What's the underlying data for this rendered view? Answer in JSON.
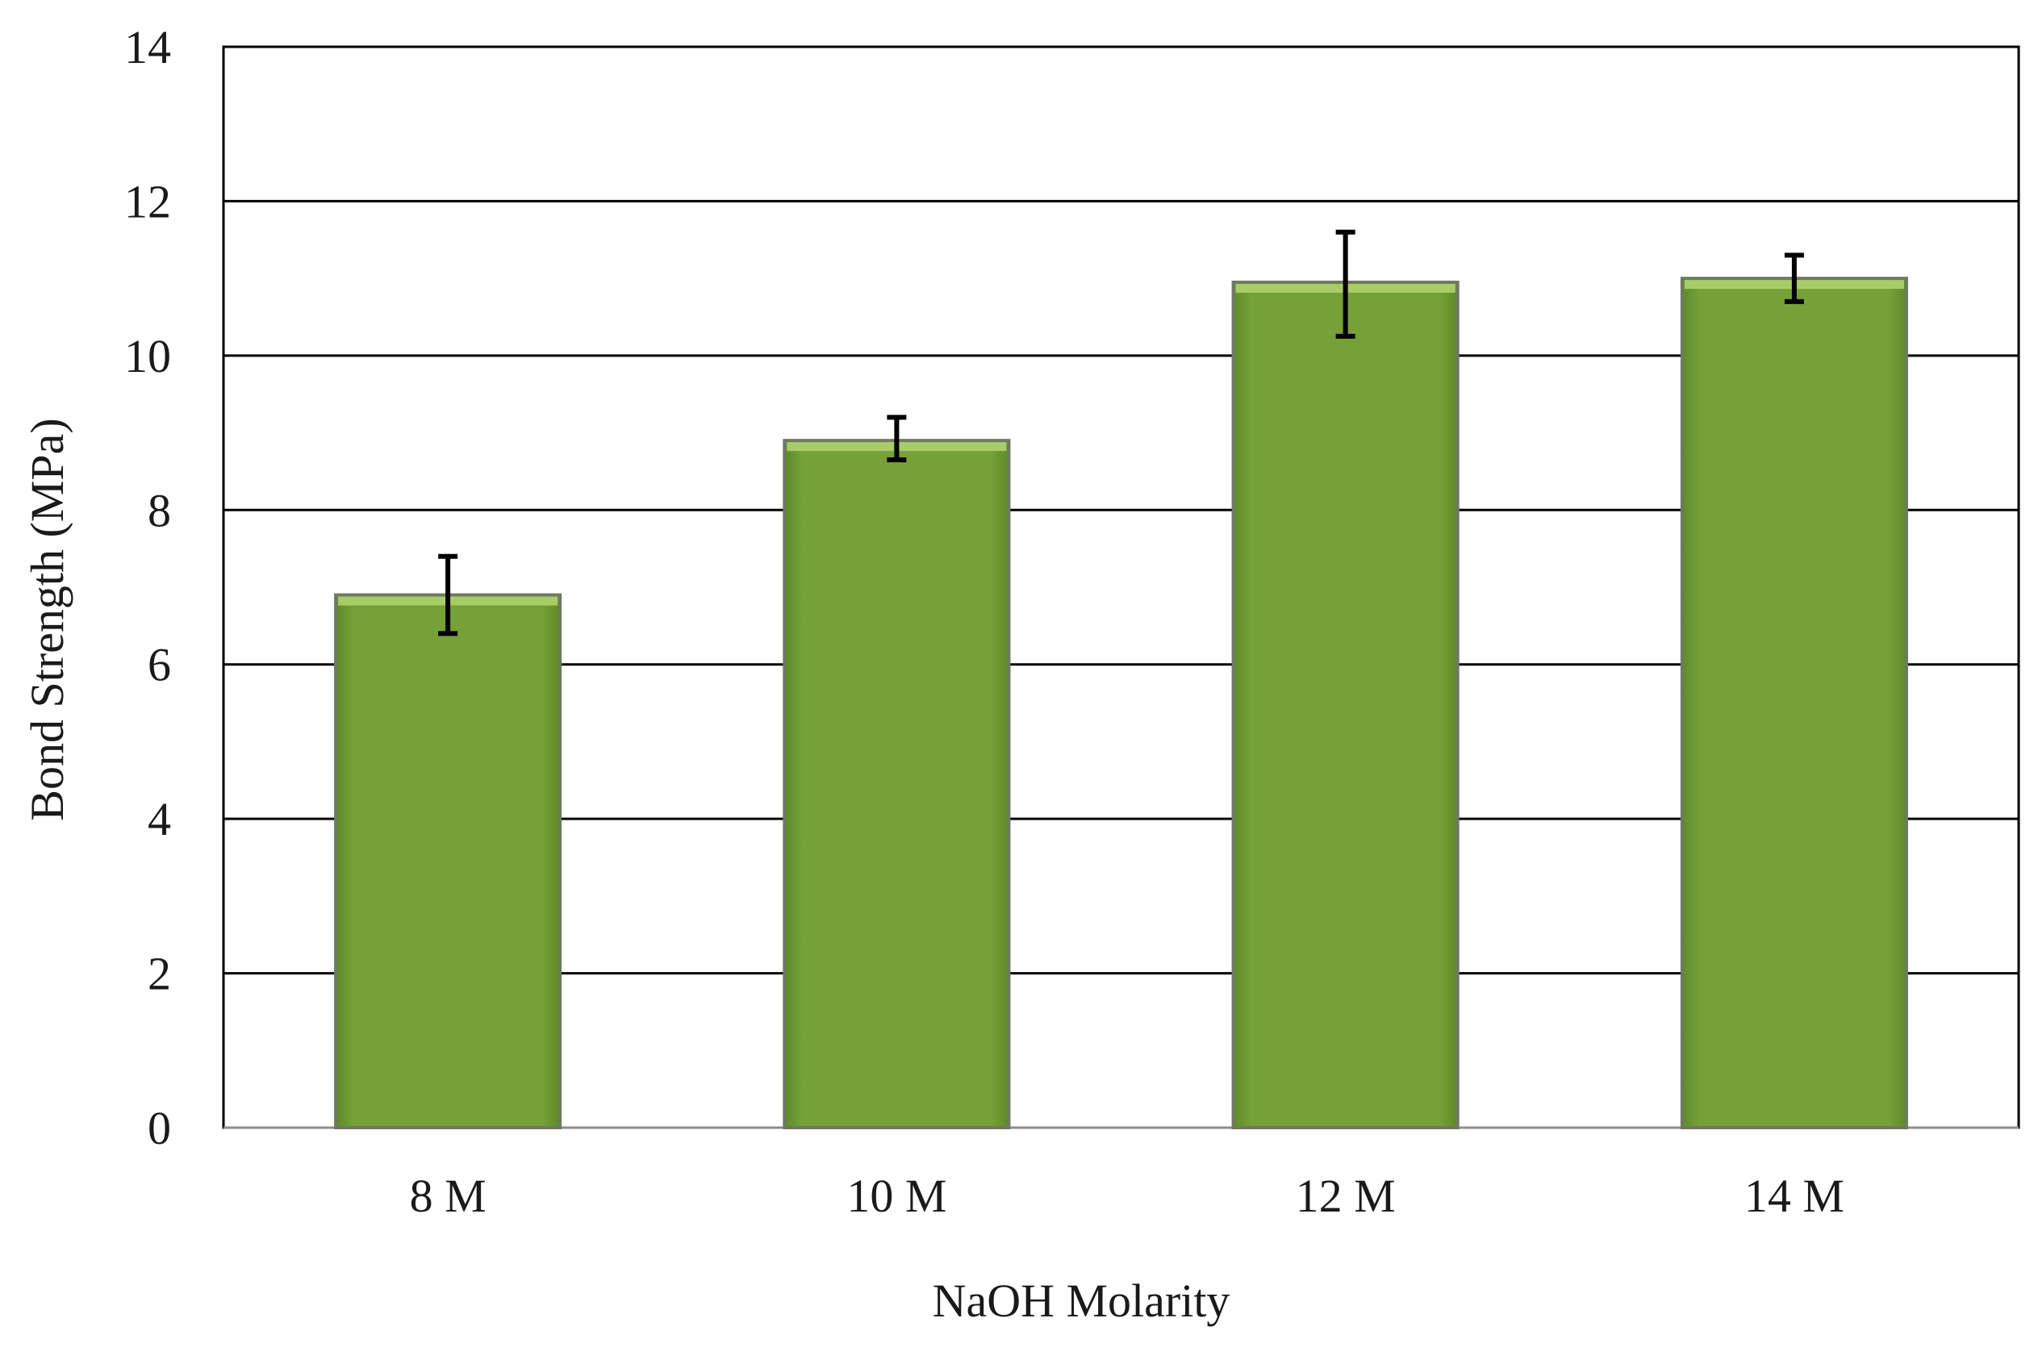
{
  "chart_data": {
    "type": "bar",
    "categories": [
      "8 M",
      "10 M",
      "12 M",
      "14 M"
    ],
    "values": [
      6.9,
      8.9,
      10.95,
      11.0
    ],
    "error_bars": {
      "lower": [
        6.4,
        8.65,
        10.25,
        10.7
      ],
      "upper": [
        7.4,
        9.2,
        11.6,
        11.3
      ]
    },
    "xlabel": "NaOH Molarity",
    "ylabel": "Bond Strength (MPa)",
    "ylim": [
      0,
      14
    ],
    "yticks": [
      0,
      2,
      4,
      6,
      8,
      10,
      12,
      14
    ],
    "grid": true,
    "legend": "none",
    "colors": {
      "bar_fill": "#76A038",
      "bar_top": "#A7CC68",
      "bar_edge": "#6E7A60",
      "grid": "#000000",
      "error_bar": "#000000"
    }
  }
}
